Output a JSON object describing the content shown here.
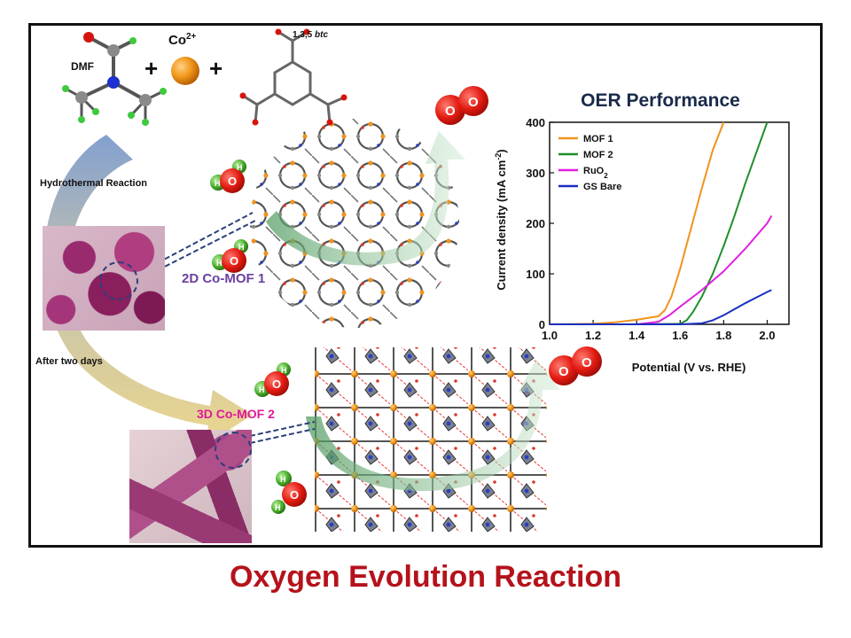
{
  "reagents": {
    "dmf_label": "DMF",
    "plus_1": "+",
    "co_label": "Co",
    "co_charge": "2+",
    "plus_2": "+",
    "btc_label_prefix": "1,3,5 ",
    "btc_label_italic": "btc"
  },
  "process": {
    "hydrothermal_label": "Hydrothermal Reaction",
    "after_two_days_label": "After two days"
  },
  "products": {
    "mof1_label": "2D Co-MOF 1",
    "mof1_color": "#6a3fa0",
    "mof2_label": "3D Co-MOF 2",
    "mof2_color": "#e0189a"
  },
  "molecules": {
    "water_atoms": [
      "H",
      "O",
      "H"
    ],
    "oxygen_atoms": [
      "O",
      "O"
    ]
  },
  "chart_data": {
    "type": "line",
    "title": "OER Performance",
    "xlabel": "Potential (V vs. RHE)",
    "ylabel_main": "Current density (mA cm",
    "ylabel_sup": "-2",
    "ylabel_end": ")",
    "xlim": [
      1.0,
      2.1
    ],
    "ylim": [
      0,
      400
    ],
    "xticks": [
      "1.0",
      "1.2",
      "1.4",
      "1.6",
      "1.8",
      "2.0"
    ],
    "yticks": [
      "0",
      "100",
      "200",
      "300",
      "400"
    ],
    "legend_position": "top-left",
    "series": [
      {
        "name": "MOF 1",
        "color": "#f0931e",
        "x": [
          1.0,
          1.2,
          1.3,
          1.4,
          1.5,
          1.53,
          1.56,
          1.6,
          1.65,
          1.7,
          1.75,
          1.8
        ],
        "y": [
          0,
          1,
          4,
          9,
          16,
          28,
          55,
          110,
          190,
          270,
          345,
          400
        ]
      },
      {
        "name": "MOF 2",
        "color": "#1f8f2a",
        "x": [
          1.0,
          1.4,
          1.6,
          1.63,
          1.66,
          1.7,
          1.75,
          1.8,
          1.85,
          1.9,
          1.95,
          2.0
        ],
        "y": [
          0,
          0,
          1,
          8,
          25,
          55,
          100,
          155,
          215,
          280,
          340,
          400
        ]
      },
      {
        "name": "RuO2",
        "name_main": "RuO",
        "name_sub": "2",
        "color": "#e020e0",
        "x": [
          1.0,
          1.4,
          1.5,
          1.55,
          1.6,
          1.7,
          1.8,
          1.9,
          2.0,
          2.02
        ],
        "y": [
          0,
          0,
          5,
          18,
          35,
          68,
          105,
          150,
          200,
          215
        ]
      },
      {
        "name": "GS Bare",
        "color": "#1a2fc0",
        "x": [
          1.0,
          1.6,
          1.7,
          1.75,
          1.8,
          1.85,
          1.9,
          1.95,
          2.0,
          2.02
        ],
        "y": [
          0,
          0,
          2,
          8,
          18,
          30,
          42,
          53,
          64,
          68
        ]
      }
    ]
  },
  "footer": {
    "title": "Oxygen Evolution Reaction"
  }
}
